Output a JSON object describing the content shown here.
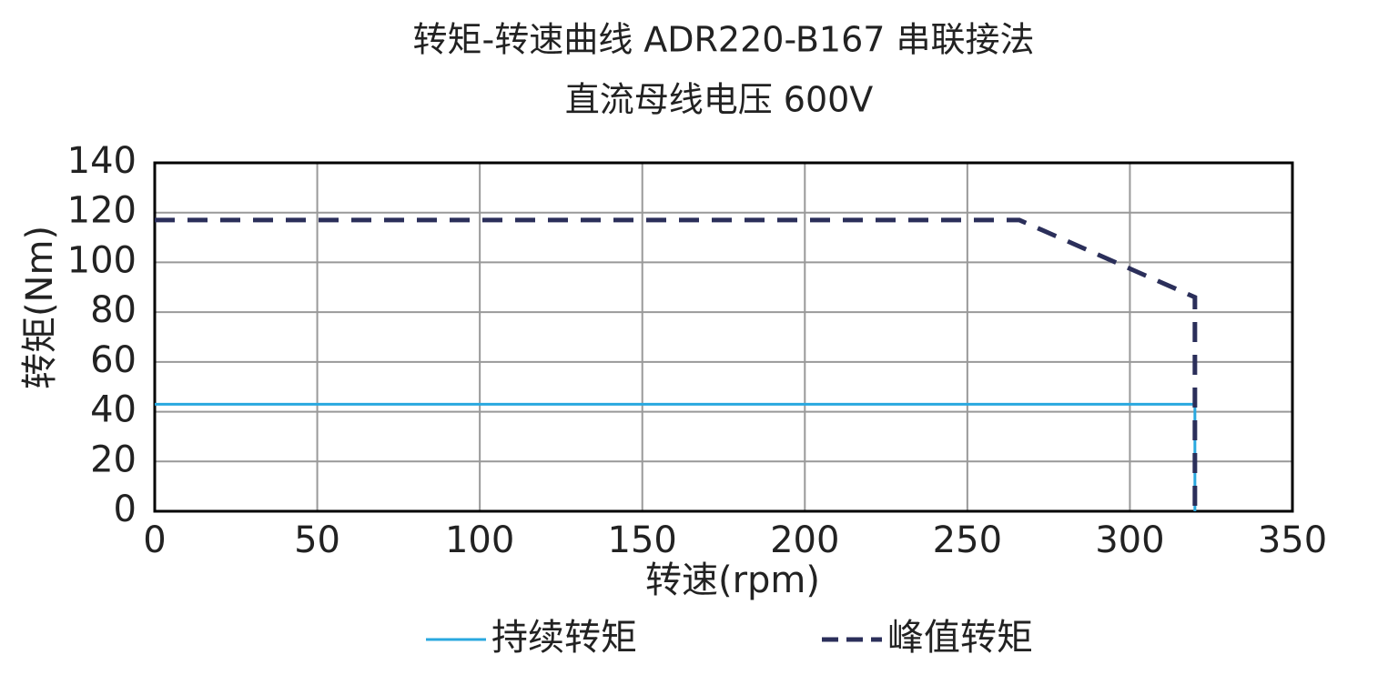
{
  "chart_data": {
    "type": "line",
    "title": "转矩-转速曲线 ADR220-B167 串联接法",
    "subtitle": "直流母线电压 600V",
    "x_label": "转速(rpm)",
    "y_label": "转矩(Nm)",
    "xlim": [
      0,
      350
    ],
    "xticks": [
      0,
      50,
      100,
      150,
      200,
      250,
      300,
      350
    ],
    "ylim": [
      0,
      140
    ],
    "yticks": [
      0,
      20,
      40,
      60,
      80,
      100,
      120,
      140
    ],
    "grid": true,
    "legend": "bottom",
    "series": [
      {
        "name": "持续转矩",
        "color": "#29a8df",
        "dash": false,
        "x": [
          0,
          320,
          320
        ],
        "values": [
          43,
          43,
          0
        ]
      },
      {
        "name": "峰值转矩",
        "color": "#2b2f5a",
        "dash": true,
        "x": [
          0,
          266,
          320,
          320
        ],
        "values": [
          117,
          117,
          86,
          0
        ]
      }
    ]
  }
}
